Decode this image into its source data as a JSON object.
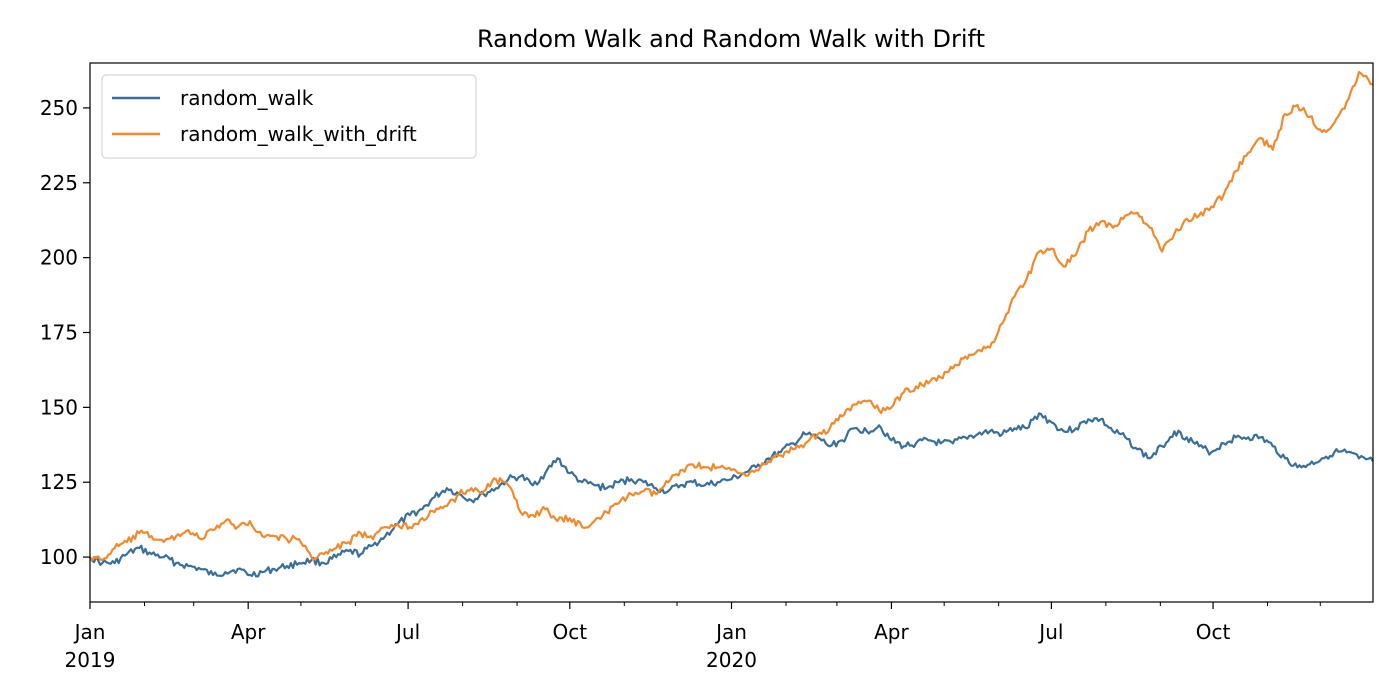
{
  "chart_data": {
    "type": "line",
    "title": "Random Walk and Random Walk with Drift",
    "xlabel": "",
    "ylabel": "",
    "x_range": [
      "2019-01-01",
      "2020-12-31"
    ],
    "ylim": [
      85,
      265
    ],
    "y_ticks": [
      100,
      125,
      150,
      175,
      200,
      225,
      250
    ],
    "x_ticks": [
      {
        "date": "2019-01-01",
        "label": "Jan",
        "sublabel": "2019"
      },
      {
        "date": "2019-04-01",
        "label": "Apr",
        "sublabel": ""
      },
      {
        "date": "2019-07-01",
        "label": "Jul",
        "sublabel": ""
      },
      {
        "date": "2019-10-01",
        "label": "Oct",
        "sublabel": ""
      },
      {
        "date": "2020-01-01",
        "label": "Jan",
        "sublabel": "2020"
      },
      {
        "date": "2020-04-01",
        "label": "Apr",
        "sublabel": ""
      },
      {
        "date": "2020-07-01",
        "label": "Jul",
        "sublabel": ""
      },
      {
        "date": "2020-10-01",
        "label": "Oct",
        "sublabel": ""
      }
    ],
    "minor_x_ticks": [
      "2019-02-01",
      "2019-03-01",
      "2019-05-01",
      "2019-06-01",
      "2019-08-01",
      "2019-09-01",
      "2019-11-01",
      "2019-12-01",
      "2020-02-01",
      "2020-03-01",
      "2020-05-01",
      "2020-06-01",
      "2020-08-01",
      "2020-09-01",
      "2020-11-01",
      "2020-12-01"
    ],
    "legend_position": "top-left",
    "grid": false,
    "series": [
      {
        "name": "random_walk",
        "color": "#3a6f9a",
        "points": [
          [
            "2019-01-01",
            100
          ],
          [
            "2019-01-08",
            98
          ],
          [
            "2019-01-15",
            98
          ],
          [
            "2019-01-22",
            101
          ],
          [
            "2019-01-29",
            103
          ],
          [
            "2019-02-05",
            101
          ],
          [
            "2019-02-12",
            100
          ],
          [
            "2019-02-19",
            98
          ],
          [
            "2019-02-26",
            97
          ],
          [
            "2019-03-05",
            96
          ],
          [
            "2019-03-12",
            94
          ],
          [
            "2019-03-19",
            95
          ],
          [
            "2019-03-26",
            96
          ],
          [
            "2019-04-02",
            94
          ],
          [
            "2019-04-09",
            95
          ],
          [
            "2019-04-16",
            96
          ],
          [
            "2019-04-23",
            97
          ],
          [
            "2019-04-30",
            98
          ],
          [
            "2019-05-07",
            99
          ],
          [
            "2019-05-14",
            98
          ],
          [
            "2019-05-21",
            100
          ],
          [
            "2019-05-28",
            102
          ],
          [
            "2019-06-04",
            101
          ],
          [
            "2019-06-11",
            104
          ],
          [
            "2019-06-18",
            107
          ],
          [
            "2019-06-25",
            111
          ],
          [
            "2019-07-02",
            114
          ],
          [
            "2019-07-09",
            116
          ],
          [
            "2019-07-16",
            120
          ],
          [
            "2019-07-23",
            123
          ],
          [
            "2019-07-30",
            121
          ],
          [
            "2019-08-06",
            119
          ],
          [
            "2019-08-13",
            121
          ],
          [
            "2019-08-20",
            123
          ],
          [
            "2019-08-27",
            126
          ],
          [
            "2019-09-03",
            127
          ],
          [
            "2019-09-10",
            124
          ],
          [
            "2019-09-17",
            128
          ],
          [
            "2019-09-24",
            133
          ],
          [
            "2019-10-01",
            128
          ],
          [
            "2019-10-08",
            125
          ],
          [
            "2019-10-15",
            124
          ],
          [
            "2019-10-22",
            123
          ],
          [
            "2019-10-29",
            125
          ],
          [
            "2019-11-05",
            126
          ],
          [
            "2019-11-12",
            125
          ],
          [
            "2019-11-19",
            123
          ],
          [
            "2019-11-26",
            122
          ],
          [
            "2019-12-03",
            124
          ],
          [
            "2019-12-10",
            125
          ],
          [
            "2019-12-17",
            124
          ],
          [
            "2019-12-24",
            125
          ],
          [
            "2020-01-01",
            126
          ],
          [
            "2020-01-08",
            128
          ],
          [
            "2020-01-15",
            130
          ],
          [
            "2020-01-22",
            133
          ],
          [
            "2020-01-29",
            135
          ],
          [
            "2020-02-05",
            138
          ],
          [
            "2020-02-12",
            141
          ],
          [
            "2020-02-19",
            140
          ],
          [
            "2020-02-26",
            137
          ],
          [
            "2020-03-04",
            139
          ],
          [
            "2020-03-11",
            143
          ],
          [
            "2020-03-18",
            142
          ],
          [
            "2020-03-25",
            144
          ],
          [
            "2020-04-01",
            139
          ],
          [
            "2020-04-08",
            137
          ],
          [
            "2020-04-15",
            138
          ],
          [
            "2020-04-22",
            139
          ],
          [
            "2020-04-29",
            138
          ],
          [
            "2020-05-06",
            138
          ],
          [
            "2020-05-13",
            140
          ],
          [
            "2020-05-20",
            141
          ],
          [
            "2020-05-27",
            142
          ],
          [
            "2020-06-03",
            141
          ],
          [
            "2020-06-10",
            143
          ],
          [
            "2020-06-17",
            143
          ],
          [
            "2020-06-24",
            148
          ],
          [
            "2020-07-01",
            145
          ],
          [
            "2020-07-08",
            142
          ],
          [
            "2020-07-15",
            143
          ],
          [
            "2020-07-22",
            146
          ],
          [
            "2020-07-29",
            146
          ],
          [
            "2020-08-05",
            142
          ],
          [
            "2020-08-12",
            140
          ],
          [
            "2020-08-19",
            136
          ],
          [
            "2020-08-26",
            133
          ],
          [
            "2020-09-02",
            137
          ],
          [
            "2020-09-09",
            142
          ],
          [
            "2020-09-16",
            140
          ],
          [
            "2020-09-23",
            137
          ],
          [
            "2020-09-30",
            135
          ],
          [
            "2020-10-07",
            138
          ],
          [
            "2020-10-14",
            140
          ],
          [
            "2020-10-21",
            140
          ],
          [
            "2020-10-28",
            140
          ],
          [
            "2020-11-04",
            137
          ],
          [
            "2020-11-11",
            133
          ],
          [
            "2020-11-18",
            130
          ],
          [
            "2020-11-25",
            131
          ],
          [
            "2020-12-02",
            133
          ],
          [
            "2020-12-09",
            135
          ],
          [
            "2020-12-16",
            135
          ],
          [
            "2020-12-23",
            133
          ],
          [
            "2020-12-31",
            132
          ]
        ]
      },
      {
        "name": "random_walk_with_drift",
        "color": "#f28a2b",
        "points": [
          [
            "2019-01-01",
            100
          ],
          [
            "2019-01-08",
            99
          ],
          [
            "2019-01-15",
            103
          ],
          [
            "2019-01-22",
            105
          ],
          [
            "2019-01-29",
            108
          ],
          [
            "2019-02-05",
            107
          ],
          [
            "2019-02-12",
            105
          ],
          [
            "2019-02-19",
            107
          ],
          [
            "2019-02-26",
            109
          ],
          [
            "2019-03-05",
            106
          ],
          [
            "2019-03-12",
            109
          ],
          [
            "2019-03-19",
            112
          ],
          [
            "2019-03-26",
            110
          ],
          [
            "2019-04-02",
            112
          ],
          [
            "2019-04-09",
            107
          ],
          [
            "2019-04-16",
            107
          ],
          [
            "2019-04-23",
            106
          ],
          [
            "2019-04-30",
            106
          ],
          [
            "2019-05-07",
            100
          ],
          [
            "2019-05-14",
            101
          ],
          [
            "2019-05-21",
            103
          ],
          [
            "2019-05-28",
            105
          ],
          [
            "2019-06-04",
            108
          ],
          [
            "2019-06-11",
            106
          ],
          [
            "2019-06-18",
            110
          ],
          [
            "2019-06-25",
            111
          ],
          [
            "2019-07-02",
            110
          ],
          [
            "2019-07-09",
            113
          ],
          [
            "2019-07-16",
            115
          ],
          [
            "2019-07-23",
            117
          ],
          [
            "2019-07-30",
            121
          ],
          [
            "2019-08-06",
            123
          ],
          [
            "2019-08-13",
            122
          ],
          [
            "2019-08-20",
            126
          ],
          [
            "2019-08-27",
            124
          ],
          [
            "2019-09-03",
            115
          ],
          [
            "2019-09-10",
            114
          ],
          [
            "2019-09-17",
            116
          ],
          [
            "2019-09-24",
            112
          ],
          [
            "2019-10-01",
            113
          ],
          [
            "2019-10-08",
            110
          ],
          [
            "2019-10-15",
            112
          ],
          [
            "2019-10-22",
            115
          ],
          [
            "2019-10-29",
            118
          ],
          [
            "2019-11-05",
            121
          ],
          [
            "2019-11-12",
            122
          ],
          [
            "2019-11-19",
            121
          ],
          [
            "2019-11-26",
            125
          ],
          [
            "2019-12-03",
            129
          ],
          [
            "2019-12-10",
            131
          ],
          [
            "2019-12-17",
            130
          ],
          [
            "2019-12-24",
            130
          ],
          [
            "2020-01-01",
            129
          ],
          [
            "2020-01-08",
            128
          ],
          [
            "2020-01-15",
            129
          ],
          [
            "2020-01-22",
            132
          ],
          [
            "2020-01-29",
            134
          ],
          [
            "2020-02-05",
            136
          ],
          [
            "2020-02-12",
            138
          ],
          [
            "2020-02-19",
            141
          ],
          [
            "2020-02-26",
            143
          ],
          [
            "2020-03-04",
            147
          ],
          [
            "2020-03-11",
            151
          ],
          [
            "2020-03-18",
            152
          ],
          [
            "2020-03-25",
            149
          ],
          [
            "2020-04-01",
            150
          ],
          [
            "2020-04-08",
            155
          ],
          [
            "2020-04-15",
            157
          ],
          [
            "2020-04-22",
            158
          ],
          [
            "2020-04-29",
            160
          ],
          [
            "2020-05-06",
            163
          ],
          [
            "2020-05-13",
            167
          ],
          [
            "2020-05-20",
            169
          ],
          [
            "2020-05-27",
            170
          ],
          [
            "2020-06-03",
            178
          ],
          [
            "2020-06-10",
            187
          ],
          [
            "2020-06-17",
            193
          ],
          [
            "2020-06-24",
            202
          ],
          [
            "2020-07-01",
            203
          ],
          [
            "2020-07-08",
            197
          ],
          [
            "2020-07-15",
            201
          ],
          [
            "2020-07-22",
            209
          ],
          [
            "2020-07-29",
            212
          ],
          [
            "2020-08-05",
            210
          ],
          [
            "2020-08-12",
            214
          ],
          [
            "2020-08-19",
            215
          ],
          [
            "2020-08-26",
            210
          ],
          [
            "2020-09-02",
            202
          ],
          [
            "2020-09-09",
            208
          ],
          [
            "2020-09-16",
            213
          ],
          [
            "2020-09-23",
            214
          ],
          [
            "2020-09-30",
            217
          ],
          [
            "2020-10-07",
            221
          ],
          [
            "2020-10-14",
            229
          ],
          [
            "2020-10-21",
            235
          ],
          [
            "2020-10-28",
            240
          ],
          [
            "2020-11-04",
            236
          ],
          [
            "2020-11-11",
            248
          ],
          [
            "2020-11-18",
            251
          ],
          [
            "2020-11-25",
            247
          ],
          [
            "2020-12-02",
            242
          ],
          [
            "2020-12-09",
            245
          ],
          [
            "2020-12-16",
            252
          ],
          [
            "2020-12-23",
            262
          ],
          [
            "2020-12-31",
            258
          ]
        ]
      }
    ]
  }
}
